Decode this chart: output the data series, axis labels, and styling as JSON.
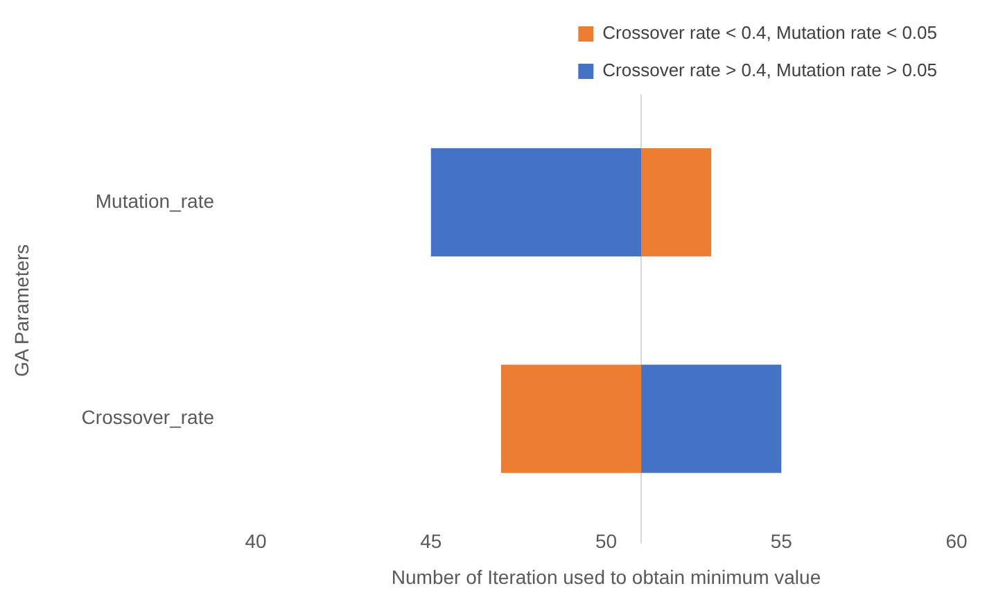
{
  "chart_data": {
    "type": "bar",
    "orientation": "horizontal",
    "ylabel": "GA Parameters",
    "xlabel": "Number of Iteration used to obtain minimum value",
    "categories": [
      "Mutation_rate",
      "Crossover_rate"
    ],
    "series": [
      {
        "name": "Crossover rate < 0.4, Mutation rate < 0.05",
        "color": "#ed7d31",
        "values": [
          2,
          4
        ],
        "base": [
          51,
          47
        ]
      },
      {
        "name": "Crossover rate > 0.4, Mutation rate > 0.05",
        "color": "#4472c4",
        "values": [
          6,
          4
        ],
        "base": [
          45,
          51
        ]
      }
    ],
    "xlim": [
      40,
      60
    ],
    "xticks": [
      40,
      45,
      50,
      55,
      60
    ],
    "grid": false,
    "legend": "top right",
    "ref_lines": [
      {
        "axis": "x",
        "value": 51,
        "color": "#d9d9d9"
      }
    ]
  }
}
